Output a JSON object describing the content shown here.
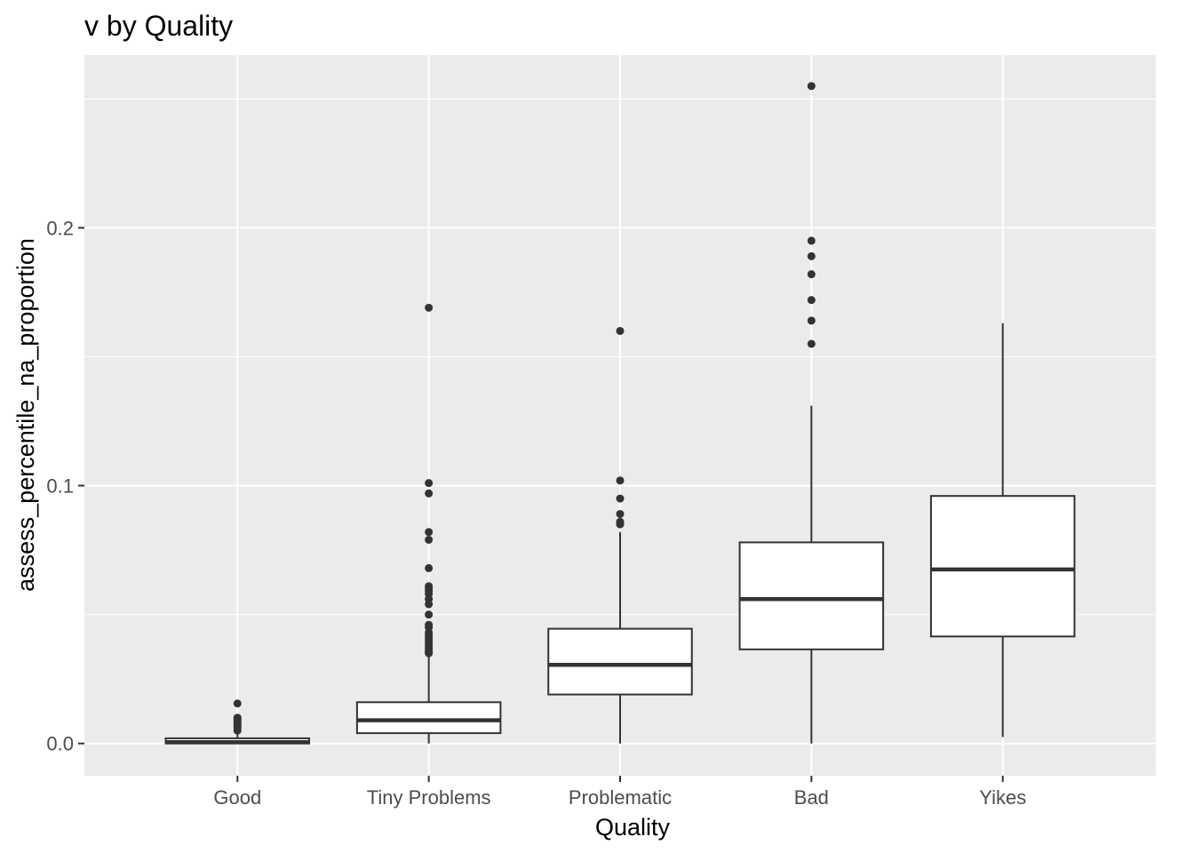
{
  "chart_data": {
    "type": "boxplot",
    "title": "v by Quality",
    "xlabel": "Quality",
    "ylabel": "assess_percentile_na_proportion",
    "categories": [
      "Good",
      "Tiny Problems",
      "Problematic",
      "Bad",
      "Yikes"
    ],
    "ylim": [
      -0.0125,
      0.267
    ],
    "yticks": [
      0.0,
      0.1,
      0.2
    ],
    "ytick_labels": [
      "0.0",
      "0.1",
      "0.2"
    ],
    "grid": true,
    "panel_background": "#ebebeb",
    "grid_color": "#ffffff",
    "box_fill": "#ffffff",
    "box_stroke": "#333333",
    "outlier_color": "#333333",
    "boxes": [
      {
        "category": "Good",
        "whisker_low": 0.0,
        "q1": 0.0,
        "median": 0.0005,
        "q3": 0.002,
        "whisker_high": 0.004,
        "outliers": [
          0.005,
          0.006,
          0.0065,
          0.007,
          0.0075,
          0.008,
          0.009,
          0.0095,
          0.01,
          0.0155
        ]
      },
      {
        "category": "Tiny Problems",
        "whisker_low": 0.0,
        "q1": 0.004,
        "median": 0.009,
        "q3": 0.016,
        "whisker_high": 0.034,
        "outliers": [
          0.035,
          0.0355,
          0.036,
          0.037,
          0.038,
          0.039,
          0.04,
          0.041,
          0.042,
          0.043,
          0.045,
          0.046,
          0.05,
          0.054,
          0.056,
          0.058,
          0.059,
          0.06,
          0.061,
          0.068,
          0.079,
          0.082,
          0.097,
          0.101,
          0.169
        ]
      },
      {
        "category": "Problematic",
        "whisker_low": 0.0,
        "q1": 0.019,
        "median": 0.0305,
        "q3": 0.0445,
        "whisker_high": 0.082,
        "outliers": [
          0.085,
          0.086,
          0.089,
          0.095,
          0.102,
          0.16
        ]
      },
      {
        "category": "Bad",
        "whisker_low": 0.0,
        "q1": 0.0365,
        "median": 0.056,
        "q3": 0.078,
        "whisker_high": 0.131,
        "outliers": [
          0.155,
          0.164,
          0.172,
          0.182,
          0.189,
          0.195,
          0.255
        ]
      },
      {
        "category": "Yikes",
        "whisker_low": 0.0025,
        "q1": 0.0415,
        "median": 0.0675,
        "q3": 0.096,
        "whisker_high": 0.163,
        "outliers": []
      }
    ]
  }
}
